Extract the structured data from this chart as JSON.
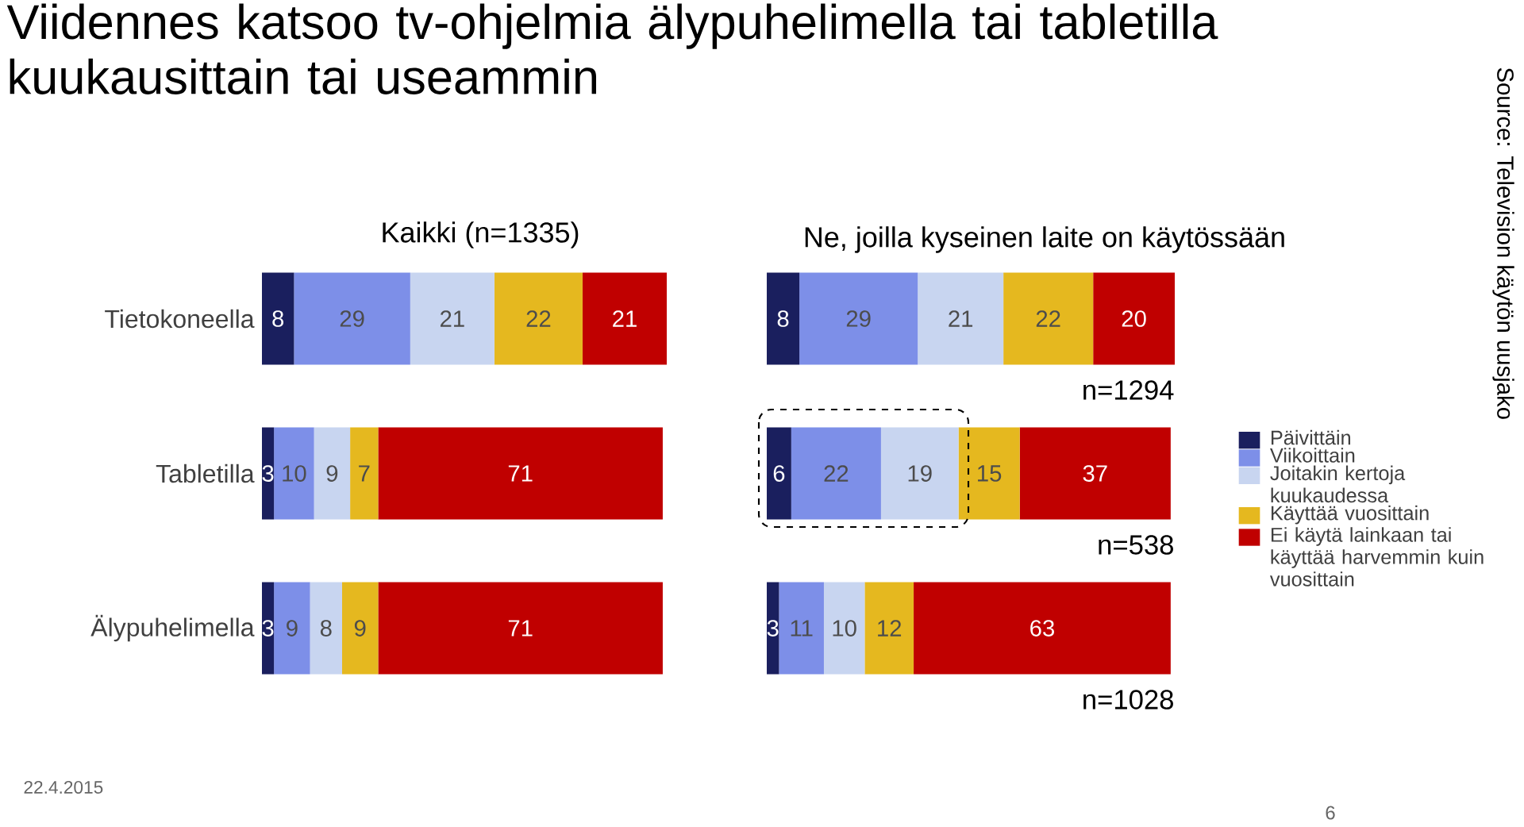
{
  "chart_data": [
    {
      "type": "bar",
      "orientation": "horizontal",
      "stacked": true,
      "data_labels": true,
      "tick_labels": "y",
      "title": "Viidennes katsoo tv-ohjelmia älypuhelimella tai tabletilla kuukausittain tai useammin",
      "subtitle": "Kaikki (n=1335)",
      "categories": [
        "Tietokoneella",
        "Tabletilla",
        "Älypuhelimella"
      ],
      "series": [
        {
          "color": "#1a1f5e",
          "values": [
            8,
            3,
            3
          ]
        },
        {
          "color": "#7d8fe8",
          "values": [
            29,
            10,
            9
          ]
        },
        {
          "color": "#c8d5f0",
          "values": [
            21,
            9,
            8
          ]
        },
        {
          "color": "#e5b81f",
          "values": [
            22,
            7,
            9
          ]
        },
        {
          "color": "#c00000",
          "values": [
            21,
            71,
            71
          ]
        }
      ],
      "annotations": [
        "22.4.2015",
        "6",
        "Source: Television käytön uusjako"
      ]
    },
    {
      "type": "bar",
      "orientation": "horizontal",
      "stacked": true,
      "data_labels": true,
      "tick_labels": false,
      "legend": "right",
      "title": "Ne, joilla kyseinen laite on käytössään",
      "categories": [
        null,
        null,
        null
      ],
      "series": [
        {
          "name": "Päivittäin",
          "color": "#1a1f5e",
          "values": [
            8,
            6,
            3
          ]
        },
        {
          "name": "Viikoittain",
          "color": "#7d8fe8",
          "values": [
            29,
            22,
            11
          ]
        },
        {
          "name": "Joitakin kertoja kuukaudessa",
          "color": "#c8d5f0",
          "values": [
            21,
            19,
            10
          ]
        },
        {
          "name": "Käyttää vuosittain",
          "color": "#e5b81f",
          "values": [
            22,
            15,
            12
          ]
        },
        {
          "name": "Ei käytä lainkaan tai käyttää harvemmin kuin vuosittain",
          "color": "#c00000",
          "values": [
            20,
            37,
            63
          ]
        }
      ],
      "annotations": [
        "n=1294",
        "n=538",
        "n=1028"
      ]
    }
  ]
}
